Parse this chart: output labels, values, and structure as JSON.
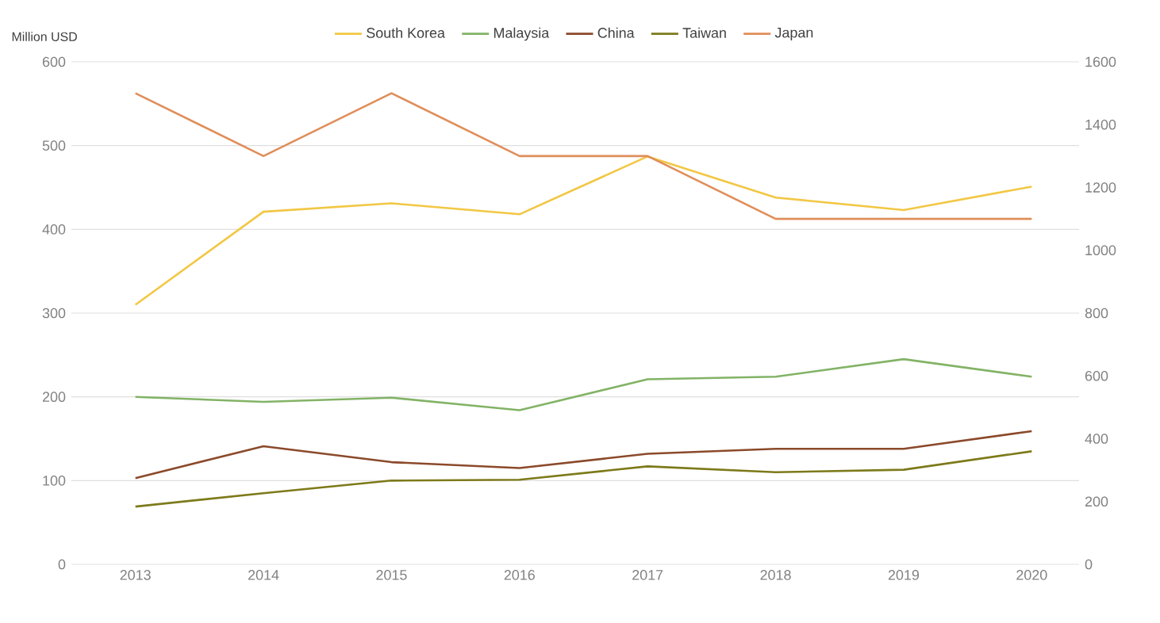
{
  "chart_data": {
    "type": "line",
    "ylabel": "Million USD",
    "categories": [
      "2013",
      "2014",
      "2015",
      "2016",
      "2017",
      "2018",
      "2019",
      "2020"
    ],
    "series": [
      {
        "name": "South Korea",
        "color": "#f2c744",
        "values": [
          310,
          421,
          431,
          418,
          487,
          438,
          423,
          451
        ]
      },
      {
        "name": "Malaysia",
        "color": "#82b366",
        "values": [
          200,
          194,
          199,
          184,
          221,
          224,
          245,
          224
        ]
      },
      {
        "name": "China",
        "color": "#8b4a2b",
        "values": [
          103,
          141,
          122,
          115,
          132,
          138,
          138,
          159
        ]
      },
      {
        "name": "Taiwan",
        "color": "#7d7a1a",
        "values": [
          69,
          85,
          100,
          101,
          117,
          110,
          113,
          135
        ]
      },
      {
        "name": "Japan",
        "color": "#e08e5a",
        "axis": "y2",
        "values": [
          1500,
          1300,
          1500,
          1300,
          1300,
          1100,
          1100,
          1100
        ]
      }
    ],
    "ylim": [
      0,
      600
    ],
    "yticks": [
      0,
      100,
      200,
      300,
      400,
      500,
      600
    ],
    "y2lim": [
      0,
      1600
    ],
    "y2ticks": [
      0,
      200,
      400,
      600,
      800,
      1000,
      1200,
      1400,
      1600
    ],
    "grid": "y",
    "legend": "top",
    "marker": "none",
    "line_style": "solid"
  }
}
